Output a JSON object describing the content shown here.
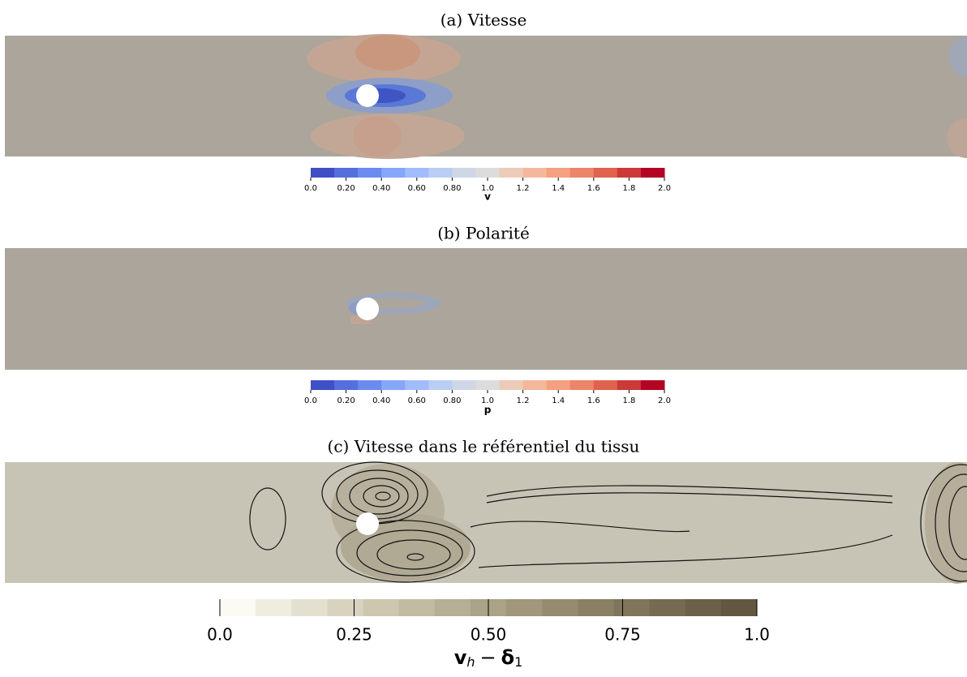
{
  "panels": [
    {
      "title": "(a) Vitesse",
      "colorbar": {
        "label": "v",
        "range": [
          0,
          2
        ],
        "colors": [
          "#3f4fc6",
          "#5570dc",
          "#6b8bef",
          "#86a6f9",
          "#a1bcfb",
          "#b9cdf5",
          "#cfd7e6",
          "#dddcdc",
          "#edcbb9",
          "#f4b79c",
          "#f4a081",
          "#ec8467",
          "#df634e",
          "#cb3a36",
          "#b40426"
        ],
        "ticks": [
          {
            "value": 0,
            "label": "0.0"
          },
          {
            "value": 0.2,
            "label": "0.20"
          },
          {
            "value": 0.4,
            "label": "0.40"
          },
          {
            "value": 0.6,
            "label": "0.60"
          },
          {
            "value": 0.8,
            "label": "0.80"
          },
          {
            "value": 1,
            "label": "1.0"
          },
          1.2,
          1.4,
          1.6,
          1.8,
          {
            "value": 2,
            "label": "2.0"
          }
        ]
      }
    },
    {
      "title": "(b) Polarité",
      "colorbar": {
        "label": "p",
        "range": [
          0,
          2
        ],
        "colors": [
          "#3f4fc6",
          "#5570dc",
          "#6b8bef",
          "#86a6f9",
          "#a1bcfb",
          "#b9cdf5",
          "#cfd7e6",
          "#dddcdc",
          "#edcbb9",
          "#f4b79c",
          "#f4a081",
          "#ec8467",
          "#df634e",
          "#cb3a36",
          "#b40426"
        ],
        "ticks": [
          {
            "value": 0,
            "label": "0.0"
          },
          {
            "value": 0.2,
            "label": "0.20"
          },
          {
            "value": 0.4,
            "label": "0.40"
          },
          {
            "value": 0.6,
            "label": "0.60"
          },
          {
            "value": 0.8,
            "label": "0.80"
          },
          {
            "value": 1,
            "label": "1.0"
          },
          1.2,
          1.4,
          1.6,
          1.8,
          {
            "value": 2,
            "label": "2.0"
          }
        ]
      }
    },
    {
      "title": "(c) Vitesse dans le référentiel du tissu",
      "colorbar": {
        "label": {
          "v": "v",
          "v_sub": "h",
          "op": "−",
          "d": "δ",
          "d_sub": "1"
        },
        "range": [
          0,
          1
        ],
        "colors": [
          "#fbfbf4",
          "#efece0",
          "#e4e0cf",
          "#d8d3bf",
          "#cdc7b0",
          "#c1bba2",
          "#b6af95",
          "#aba388",
          "#a0977c",
          "#958b70",
          "#8a8065",
          "#7f755b",
          "#756b52",
          "#6b6149",
          "#625841"
        ],
        "ticks": [
          {
            "value": 0,
            "label": "0.0"
          },
          0.25,
          {
            "value": 0.5,
            "label": "0.50"
          },
          0.75,
          {
            "value": 1,
            "label": "1.0"
          }
        ]
      }
    }
  ]
}
